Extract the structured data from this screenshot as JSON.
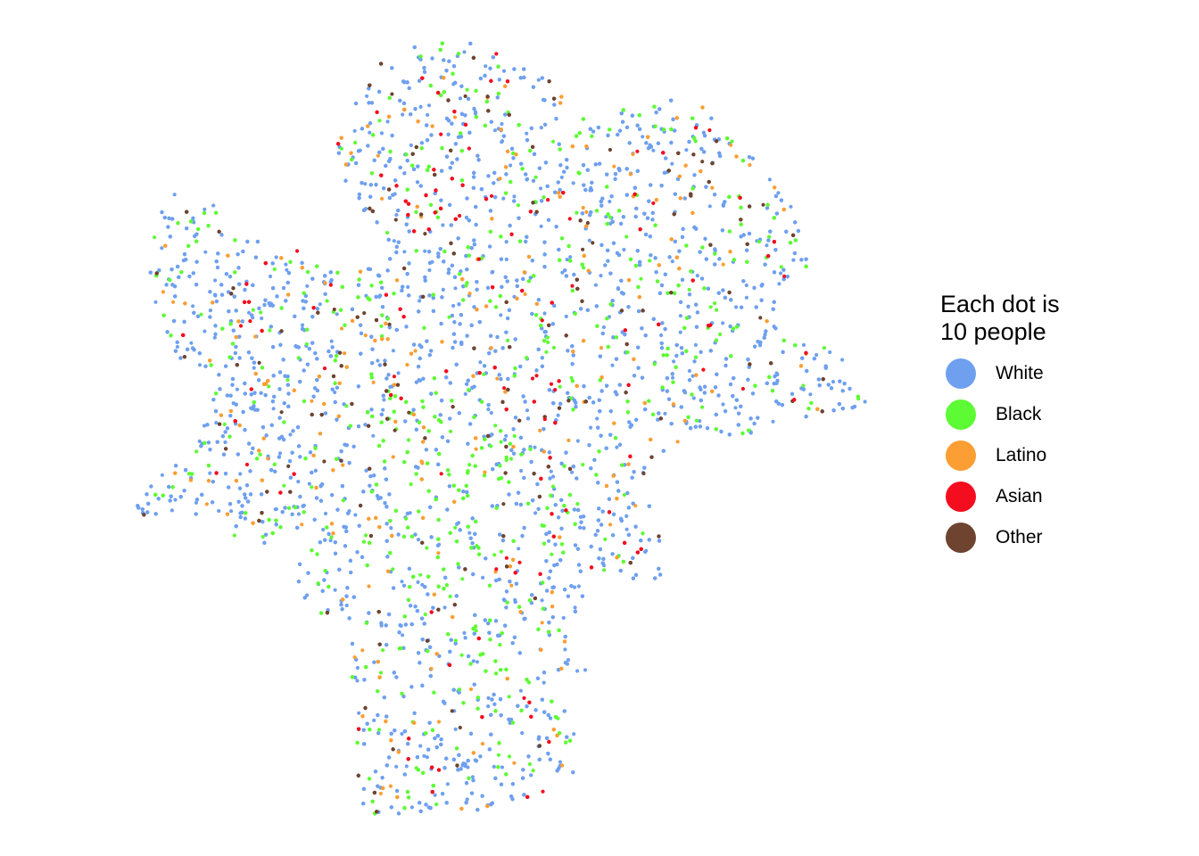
{
  "legend": {
    "title": "Each dot is\n10 people",
    "items": [
      {
        "label": "White",
        "color": "#6FA0EF"
      },
      {
        "label": "Black",
        "color": "#5DFB34"
      },
      {
        "label": "Latino",
        "color": "#FB9E33"
      },
      {
        "label": "Asian",
        "color": "#F40D1E"
      },
      {
        "label": "Other",
        "color": "#6E4430"
      }
    ]
  },
  "map": {
    "type": "dot-density",
    "people_per_dot": 10
  }
}
